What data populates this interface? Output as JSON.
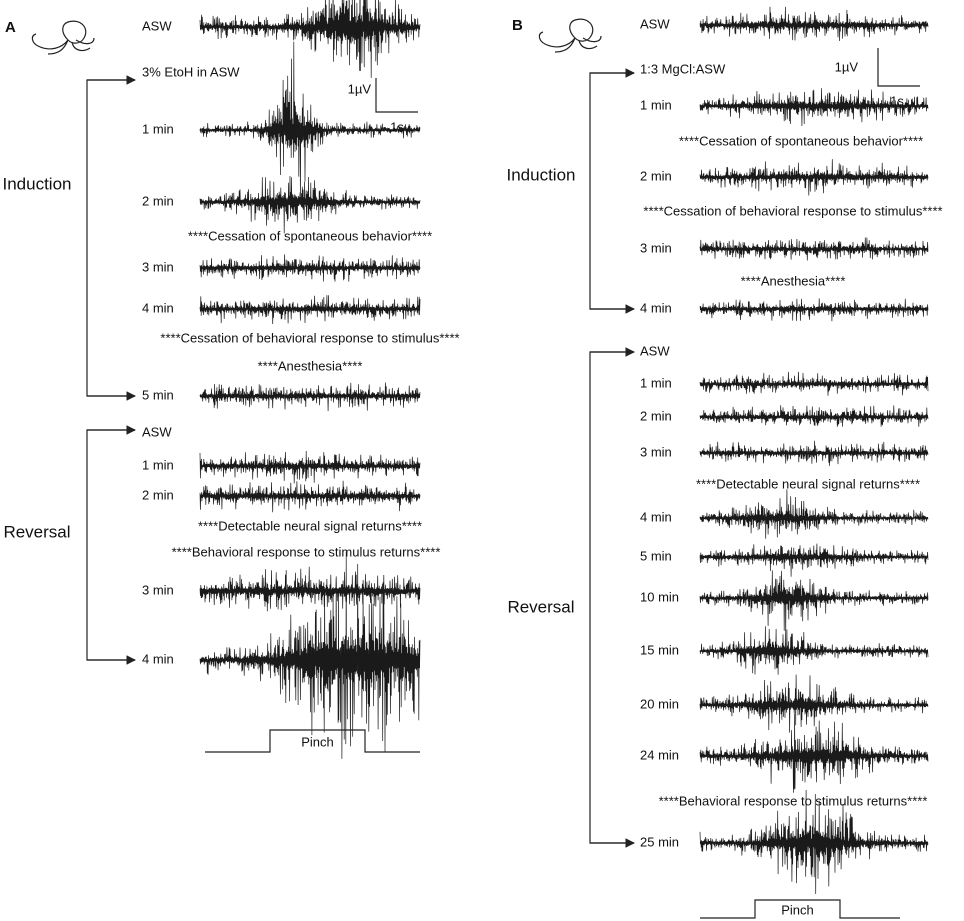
{
  "panels": [
    {
      "label": "A",
      "baseline": "ASW",
      "treatment": "3% EtoH in ASW",
      "recovery": "ASW",
      "induction": {
        "label": "Induction",
        "traces": [
          "1 min",
          "2 min",
          "3 min",
          "4 min",
          "5 min"
        ]
      },
      "reversal": {
        "label": "Reversal",
        "traces": [
          "1 min",
          "2 min",
          "3 min",
          "4 min"
        ]
      },
      "notes": [
        "****Cessation of spontaneous behavior****",
        "****Cessation of behavioral response to stimulus****",
        "****Anesthesia****",
        "****Detectable neural signal returns****",
        "****Behavioral response to stimulus returns****"
      ],
      "scale": {
        "voltage": "1µV",
        "time": "1s"
      },
      "stimulus": "Pinch"
    },
    {
      "label": "B",
      "baseline": "ASW",
      "treatment": "1:3 MgCl:ASW",
      "recovery": "ASW",
      "induction": {
        "label": "Induction",
        "traces": [
          "1 min",
          "2 min",
          "3 min",
          "4 min"
        ]
      },
      "reversal": {
        "label": "Reversal",
        "traces": [
          "1 min",
          "2 min",
          "3 min",
          "4 min",
          "5 min",
          "10 min",
          "15 min",
          "20 min",
          "24 min",
          "25 min"
        ]
      },
      "notes": [
        "****Cessation of spontaneous behavior****",
        "****Cessation of behavioral response to stimulus****",
        "****Anesthesia****",
        "****Detectable neural signal returns****",
        "****Behavioral response to stimulus returns****"
      ],
      "scale": {
        "voltage": "1µV",
        "time": "1s"
      },
      "stimulus": "Pinch"
    }
  ]
}
